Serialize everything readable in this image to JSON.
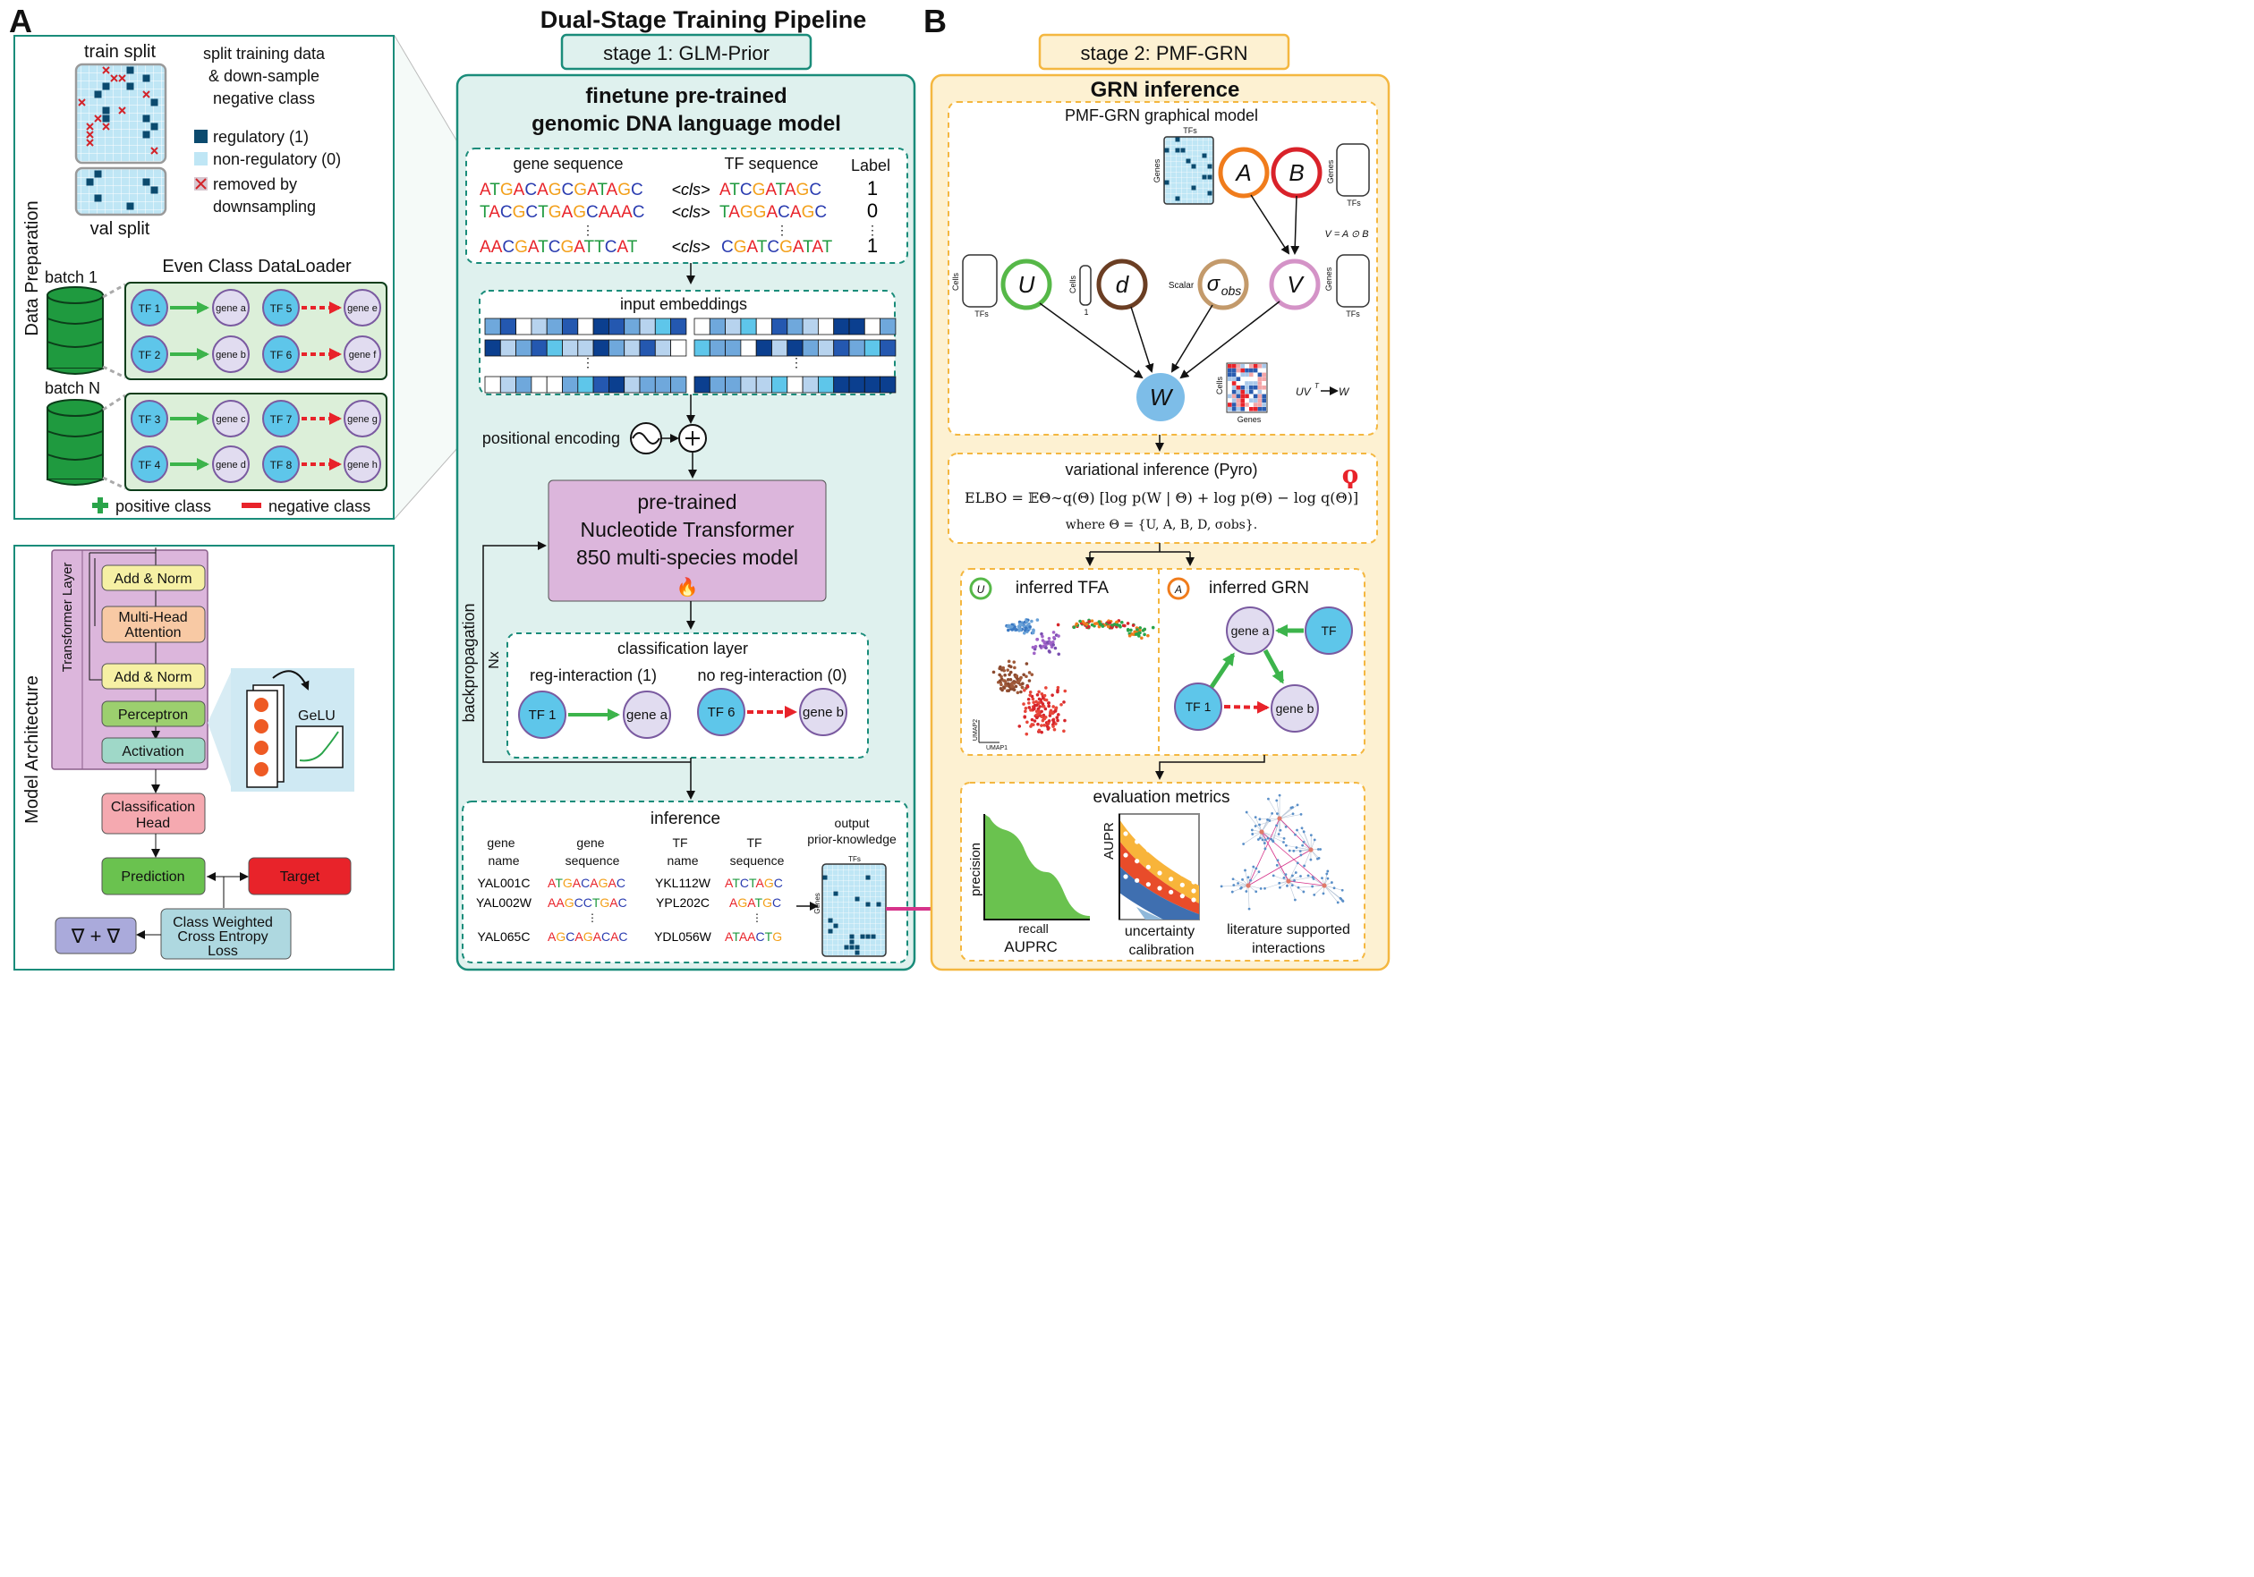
{
  "title": "Dual-Stage Training Pipeline",
  "panel_a": {
    "letter": "A",
    "stage1_label": "stage 1: GLM-Prior",
    "data_prep": {
      "side_label": "Data Preparation",
      "train_split": "train split",
      "val_split": "val split",
      "desc_line1": "split training data",
      "desc_line2": "& down-sample",
      "desc_line3": "negative class",
      "legend_regulatory": "regulatory (1)",
      "legend_nonregulatory": "non-regulatory (0)",
      "legend_removed_1": "removed by",
      "legend_removed_2": "downsampling",
      "dataloader_title": "Even Class DataLoader",
      "batch1": "batch 1",
      "batchN": "batch N",
      "batch1_rows": [
        {
          "tf_pos": "TF 1",
          "gene_pos": "gene a",
          "tf_neg": "TF 5",
          "gene_neg": "gene e"
        },
        {
          "tf_pos": "TF 2",
          "gene_pos": "gene b",
          "tf_neg": "TF 6",
          "gene_neg": "gene f"
        }
      ],
      "batchN_rows": [
        {
          "tf_pos": "TF 3",
          "gene_pos": "gene c",
          "tf_neg": "TF 7",
          "gene_neg": "gene g"
        },
        {
          "tf_pos": "TF 4",
          "gene_pos": "gene d",
          "tf_neg": "TF 8",
          "gene_neg": "gene h"
        }
      ],
      "positive_class": "positive class",
      "negative_class": "negative class"
    },
    "model_arch": {
      "side_label": "Model Architecture",
      "transformer_layer": "Transformer Layer",
      "add_norm_1": "Add & Norm",
      "mha_1": "Multi-Head",
      "mha_2": "Attention",
      "add_norm_2": "Add & Norm",
      "perceptron": "Perceptron",
      "activation": "Activation",
      "gelu": "GeLU",
      "cls_head_1": "Classification",
      "cls_head_2": "Head",
      "prediction": "Prediction",
      "target": "Target",
      "loss_1": "Class Weighted",
      "loss_2": "Cross Entropy",
      "loss_3": "Loss",
      "grad": "∇ + ∇"
    },
    "finetune": {
      "title_1": "finetune pre-trained",
      "title_2": "genomic DNA language model",
      "seq_header_gene": "gene sequence",
      "seq_header_tf": "TF sequence",
      "seq_header_label": "Label",
      "cls_token": "<cls>",
      "rows": [
        {
          "gene": "ATGACAGCGATAGC",
          "tf": "ATCGATAGC",
          "label": "1"
        },
        {
          "gene": "TACGCTGAGCAAAC",
          "tf": "TAGGACAGC",
          "label": "0"
        },
        {
          "gene": "AACGATCGATTCAT",
          "tf": "CGATCGATAT",
          "label": "1"
        }
      ],
      "ellipsis": "⋮",
      "input_embeddings": "input embeddings",
      "positional_encoding": "positional encoding",
      "nt_1": "pre-trained",
      "nt_2": "Nucleotide Transformer",
      "nt_3": "850 multi-species model",
      "fire": "🔥",
      "backprop": "backpropagation",
      "nx": "Nx",
      "cls_layer_title": "classification layer",
      "reg_interaction": "reg-interaction (1)",
      "no_reg_interaction": "no reg-interaction (0)",
      "cls_tf_pos": "TF 1",
      "cls_gene_pos": "gene a",
      "cls_tf_neg": "TF 6",
      "cls_gene_neg": "gene b",
      "inference_title": "inference",
      "inf_col_gene_name_1": "gene",
      "inf_col_gene_name_2": "name",
      "inf_col_gene_seq_1": "gene",
      "inf_col_gene_seq_2": "sequence",
      "inf_col_tf_name_1": "TF",
      "inf_col_tf_name_2": "name",
      "inf_col_tf_seq_1": "TF",
      "inf_col_tf_seq_2": "sequence",
      "inf_rows": [
        {
          "gene_name": "YAL001C",
          "gene_seq": "ATGACAGAC",
          "tf_name": "YKL112W",
          "tf_seq": "ATCTAGC"
        },
        {
          "gene_name": "YAL002W",
          "gene_seq": "AAGCCTGAC",
          "tf_name": "YPL202C",
          "tf_seq": "AGATGC"
        },
        {
          "gene_name": "YAL065C",
          "gene_seq": "AGCAGACAC",
          "tf_name": "YDL056W",
          "tf_seq": "ATAACTG"
        }
      ],
      "output_1": "output",
      "output_2": "prior-knowledge",
      "tfs": "TFs",
      "genes": "Genes"
    }
  },
  "panel_b": {
    "letter": "B",
    "stage2_label": "stage 2: PMF-GRN",
    "grn_inference": "GRN inference",
    "graphical_model": "PMF-GRN graphical model",
    "nodes": {
      "A": "A",
      "B": "B",
      "U": "U",
      "d": "d",
      "sigma": "σ",
      "sigma_sub": "obs",
      "V": "V",
      "W": "W"
    },
    "v_eq": "V = A ⊙ B",
    "uvt": "UV",
    "uvt_sup": "T",
    "uvt_w": "W",
    "labels": {
      "tfs": "TFs",
      "genes": "Genes",
      "cells": "Cells",
      "scalar": "Scalar",
      "one": "1"
    },
    "vi_title": "variational inference (Pyro)",
    "elbo": "ELBO = 𝔼Θ∼q(Θ) [log p(W | Θ) + log p(Θ) − log q(Θ)]",
    "where": "where Θ = {U, A, B, D, σobs}.",
    "inferred_tfa": "inferred TFA",
    "inferred_grn": "inferred GRN",
    "umap1": "UMAP1",
    "umap2": "UMAP2",
    "grn_gene_a": "gene a",
    "grn_tf": "TF",
    "grn_tf1": "TF 1",
    "grn_gene_b": "gene b",
    "eval_title": "evaluation metrics",
    "precision": "precision",
    "recall": "recall",
    "auprc": "AUPRC",
    "aupr": "AUPR",
    "uncertainty_1": "uncertainty",
    "uncertainty_2": "calibration",
    "lit_1": "literature supported",
    "lit_2": "interactions"
  },
  "colors": {
    "teal": "#1a8c7a",
    "teal_fill": "#dff1ee",
    "orange": "#f4b740",
    "orange_fill": "#fdf1d2",
    "green": "#3cb44b",
    "red": "#e8232a",
    "magenta": "#d6338a",
    "purple_fill": "#dcb6dc",
    "tf_blue": "#5ec6ea",
    "gene_lav": "#e1dcf0"
  }
}
